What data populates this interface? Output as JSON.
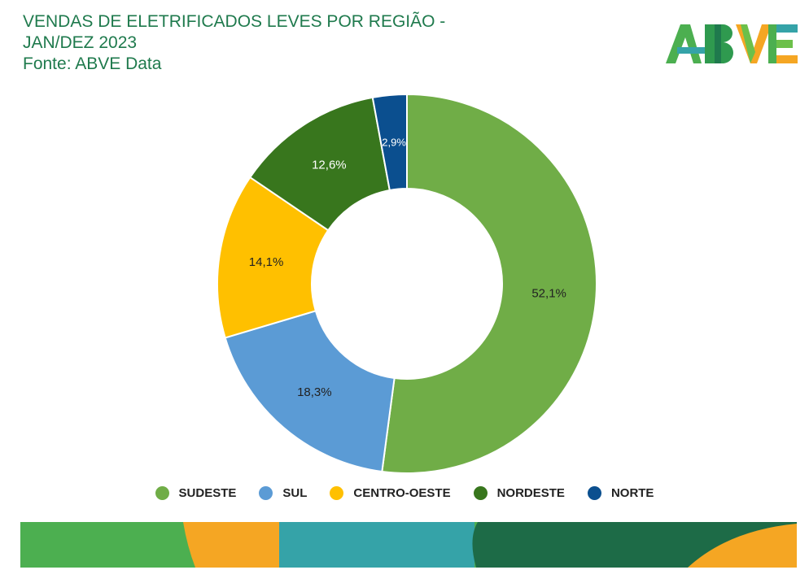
{
  "header": {
    "title_line1": "VENDAS DE ELETRIFICADOS LEVES POR REGIÃO -",
    "title_line2": "JAN/DEZ 2023",
    "source": "Fonte: ABVE Data"
  },
  "logo": {
    "text": "ABVE"
  },
  "colors": {
    "title": "#1f7a4d",
    "sudeste": "#70ad47",
    "sul": "#5b9bd5",
    "centro_oeste": "#ffc000",
    "nordeste": "#38761d",
    "norte": "#0b4f8f"
  },
  "chart_data": {
    "type": "pie",
    "donut": true,
    "title": "VENDAS DE ELETRIFICADOS LEVES POR REGIÃO - JAN/DEZ 2023",
    "legend_position": "bottom",
    "slices": [
      {
        "name": "SUDESTE",
        "value": 52.1,
        "label": "52,1%",
        "color": "#70ad47",
        "label_color": "#222222"
      },
      {
        "name": "SUL",
        "value": 18.3,
        "label": "18,3%",
        "color": "#5b9bd5",
        "label_color": "#222222"
      },
      {
        "name": "CENTRO-OESTE",
        "value": 14.1,
        "label": "14,1%",
        "color": "#ffc000",
        "label_color": "#222222"
      },
      {
        "name": "NORDESTE",
        "value": 12.6,
        "label": "12,6%",
        "color": "#38761d",
        "label_color": "#ffffff"
      },
      {
        "name": "NORTE",
        "value": 2.9,
        "label": "2,9%",
        "color": "#0b4f8f",
        "label_color": "#ffffff"
      }
    ]
  }
}
